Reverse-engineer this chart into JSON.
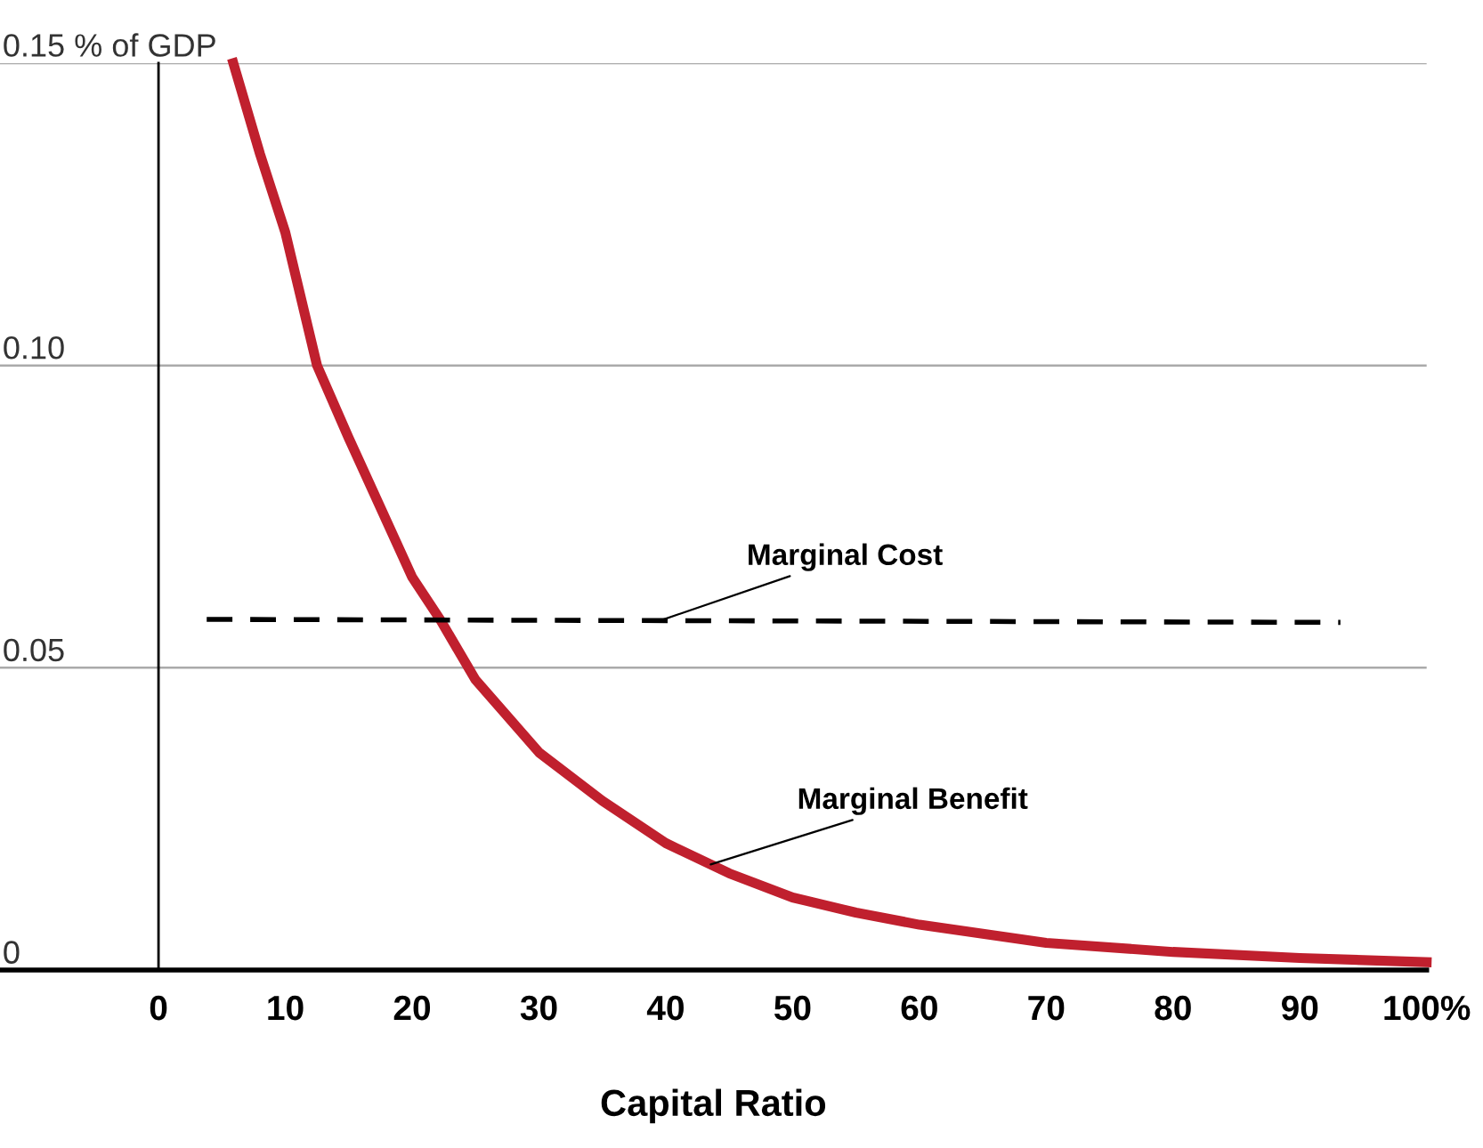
{
  "chart_data": {
    "type": "line",
    "xlabel": "Capital Ratio",
    "xlim": [
      -12.5,
      100
    ],
    "ylim": [
      0,
      0.15
    ],
    "xticks": [
      0,
      10,
      20,
      30,
      40,
      50,
      60,
      70,
      80,
      90,
      {
        "value": 100,
        "label": "100%"
      }
    ],
    "yticks": [
      0,
      0.05,
      {
        "value": 0.1,
        "label": "0.10"
      },
      {
        "value": 0.15,
        "label": "0.15 % of GDP"
      }
    ],
    "grid": "y",
    "marker": "none",
    "legend": false,
    "series": [
      {
        "name": "Marginal Benefit",
        "color": "#c0202e",
        "line_style": "solid",
        "x": [
          5.9,
          8,
          10,
          12.5,
          15,
          20,
          22.2,
          25,
          30,
          35,
          40,
          45,
          50,
          55,
          60,
          70,
          80,
          90,
          100
        ],
        "values": [
          0.15,
          0.135,
          0.122,
          0.1,
          0.088,
          0.065,
          0.058,
          0.048,
          0.036,
          0.028,
          0.021,
          0.016,
          0.012,
          0.0095,
          0.0075,
          0.0045,
          0.003,
          0.002,
          0.0013
        ]
      },
      {
        "name": "Marginal Cost",
        "color": "#000000",
        "line_style": "dashed",
        "x": [
          3.8,
          93.2
        ],
        "values": [
          0.058,
          0.0575
        ]
      }
    ]
  }
}
